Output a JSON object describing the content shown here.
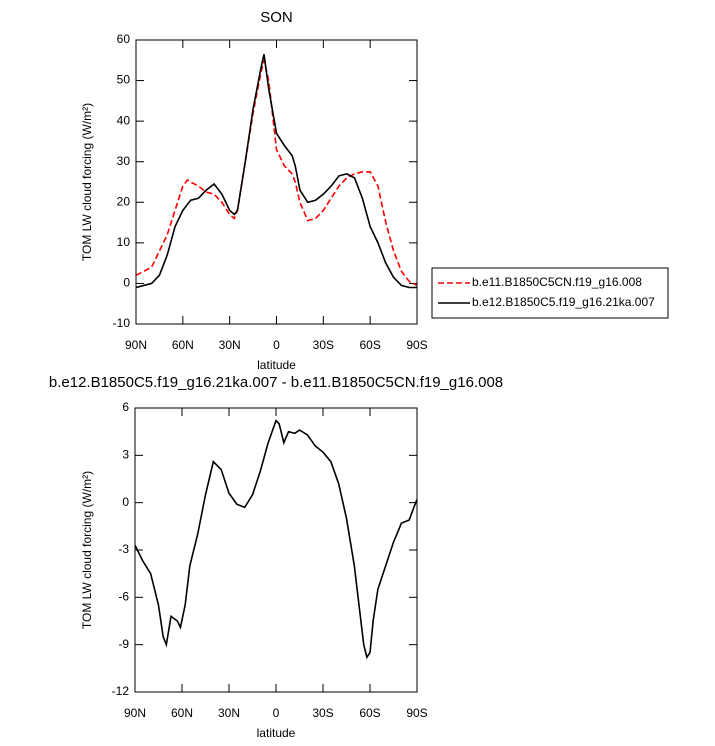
{
  "chart_data": [
    {
      "type": "line",
      "title": "SON",
      "xlabel": "latitude",
      "ylabel": "TOM LW cloud forcing (W/m²)",
      "x": [
        90,
        85,
        80,
        75,
        70,
        65,
        60,
        57,
        55,
        50,
        45,
        40,
        35,
        30,
        27,
        25,
        20,
        15,
        10,
        8,
        5,
        0,
        -5,
        -10,
        -12,
        -15,
        -20,
        -25,
        -30,
        -35,
        -40,
        -45,
        -50,
        -55,
        -60,
        -65,
        -70,
        -75,
        -80,
        -85,
        -90
      ],
      "series": [
        {
          "name": "b.e11.B1850C5CN.f19_g16.008",
          "color": "#ff0000",
          "line_style": "dashed",
          "values": [
            2,
            3,
            4,
            8,
            12,
            18,
            24,
            25.5,
            25,
            24,
            22.5,
            22,
            20,
            17,
            16,
            18,
            30,
            42,
            52,
            55,
            50,
            33,
            29,
            27,
            25,
            20,
            15.5,
            16,
            18,
            21,
            24,
            26,
            27,
            27.5,
            27.5,
            24,
            15,
            8,
            3,
            0.5,
            -0.5
          ]
        },
        {
          "name": "b.e12.B1850C5.f19_g16.21ka.007",
          "color": "#000000",
          "line_style": "solid",
          "values": [
            -1,
            -0.5,
            0,
            2,
            7,
            14,
            18,
            19.5,
            20.5,
            21,
            23,
            24.5,
            22,
            18,
            17,
            18,
            30,
            43,
            53,
            56.5,
            48,
            37,
            34,
            31.5,
            29,
            23,
            20,
            20.5,
            22,
            24,
            26.5,
            27,
            26,
            21,
            14,
            10,
            5,
            1.5,
            -0.5,
            -1,
            -1
          ]
        }
      ],
      "xlim": [
        90,
        -90
      ],
      "xticks": [
        {
          "value": 90,
          "label": "90N"
        },
        {
          "value": 60,
          "label": "60N"
        },
        {
          "value": 30,
          "label": "30N"
        },
        0,
        {
          "value": -30,
          "label": "30S"
        },
        {
          "value": -60,
          "label": "60S"
        },
        {
          "value": -90,
          "label": "90S"
        }
      ],
      "ylim": [
        -10,
        60
      ],
      "yticks": [
        -10,
        0,
        10,
        20,
        30,
        40,
        50,
        60
      ],
      "legend": "right"
    },
    {
      "type": "line",
      "title": "b.e12.B1850C5.f19_g16.21ka.007 - b.e11.B1850C5CN.f19_g16.008",
      "xlabel": "latitude",
      "ylabel": "TOM LW cloud forcing (W/m²)",
      "x": [
        90,
        85,
        80,
        75,
        72,
        70,
        67,
        63,
        61,
        58,
        55,
        50,
        45,
        40,
        37,
        35,
        30,
        25,
        20,
        15,
        10,
        5,
        0,
        -2,
        -5,
        -8,
        -12,
        -15,
        -20,
        -25,
        -30,
        -35,
        -40,
        -45,
        -50,
        -53,
        -56,
        -58,
        -60,
        -62,
        -65,
        -70,
        -75,
        -78,
        -80,
        -85,
        -88,
        -90
      ],
      "series": [
        {
          "color": "#000000",
          "line_style": "solid",
          "values": [
            -2.7,
            -3.7,
            -4.5,
            -6.5,
            -8.5,
            -9,
            -7.2,
            -7.5,
            -7.9,
            -6.5,
            -4,
            -2,
            0.5,
            2.6,
            2.3,
            2.1,
            0.6,
            -0.1,
            -0.3,
            0.5,
            2,
            3.8,
            5.2,
            5,
            3.8,
            4.5,
            4.4,
            4.6,
            4.3,
            3.6,
            3.2,
            2.6,
            1.2,
            -1,
            -4,
            -6.5,
            -9,
            -9.8,
            -9.5,
            -7.5,
            -5.5,
            -4,
            -2.5,
            -1.8,
            -1.3,
            -1.1,
            -0.3,
            0.2
          ]
        }
      ],
      "xlim": [
        90,
        -90
      ],
      "xticks": [
        {
          "value": 90,
          "label": "90N"
        },
        {
          "value": 60,
          "label": "60N"
        },
        {
          "value": 30,
          "label": "30N"
        },
        0,
        {
          "value": -30,
          "label": "30S"
        },
        {
          "value": -60,
          "label": "60S"
        },
        {
          "value": -90,
          "label": "90S"
        }
      ],
      "ylim": [
        -12,
        6
      ],
      "yticks": [
        -12,
        -9,
        -6,
        -3,
        0,
        3,
        6
      ]
    }
  ]
}
